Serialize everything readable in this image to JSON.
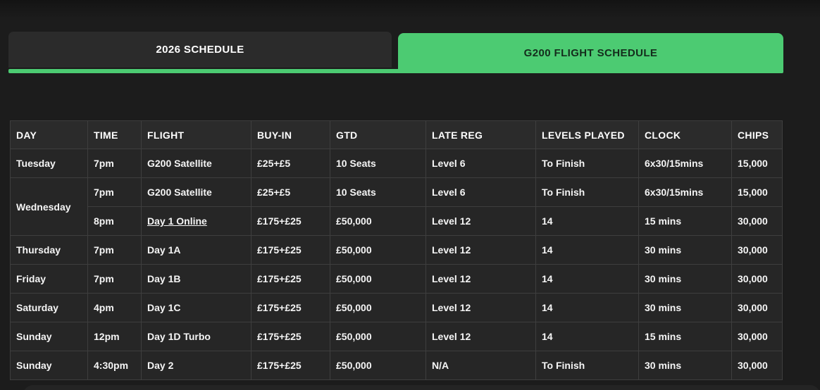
{
  "colors": {
    "accent_green": "#4ccb72",
    "background": "#1c1c1c",
    "cell_background": "#262626",
    "active_tab_text": "#142c1c"
  },
  "tabs": [
    {
      "label": "2026 SCHEDULE",
      "active": false
    },
    {
      "label": "G200 FLIGHT SCHEDULE",
      "active": true
    }
  ],
  "table": {
    "columns": [
      "DAY",
      "TIME",
      "FLIGHT",
      "BUY-IN",
      "GTD",
      "LATE REG",
      "LEVELS PLAYED",
      "CLOCK",
      "CHIPS"
    ],
    "column_keys": [
      "time",
      "flight",
      "buy-in",
      "gtd",
      "late-reg",
      "levels-played",
      "clock",
      "chips"
    ],
    "rows": [
      {
        "day": "Tuesday",
        "rowspan": 1,
        "link_cell": null,
        "cells": [
          "7pm",
          "G200 Satellite",
          "£25+£5",
          "10 Seats",
          "Level 6",
          "To Finish",
          "6x30/15mins",
          "15,000"
        ]
      },
      {
        "day": "Wednesday",
        "rowspan": 2,
        "link_cell": null,
        "cells": [
          "7pm",
          "G200 Satellite",
          "£25+£5",
          "10 Seats",
          "Level 6",
          "To Finish",
          "6x30/15mins",
          "15,000"
        ]
      },
      {
        "day": null,
        "rowspan": 0,
        "link_cell": 1,
        "cells": [
          "8pm",
          "Day 1 Online",
          "£175+£25",
          "£50,000",
          "Level 12",
          "14",
          "15 mins",
          "30,000"
        ]
      },
      {
        "day": "Thursday",
        "rowspan": 1,
        "link_cell": null,
        "cells": [
          "7pm",
          "Day 1A",
          "£175+£25",
          "£50,000",
          "Level 12",
          "14",
          "30 mins",
          "30,000"
        ]
      },
      {
        "day": "Friday",
        "rowspan": 1,
        "link_cell": null,
        "cells": [
          "7pm",
          "Day 1B",
          "£175+£25",
          "£50,000",
          "Level 12",
          "14",
          "30 mins",
          "30,000"
        ]
      },
      {
        "day": "Saturday",
        "rowspan": 1,
        "link_cell": null,
        "cells": [
          "4pm",
          "Day 1C",
          "£175+£25",
          "£50,000",
          "Level 12",
          "14",
          "30 mins",
          "30,000"
        ]
      },
      {
        "day": "Sunday",
        "rowspan": 1,
        "link_cell": null,
        "cells": [
          "12pm",
          "Day 1D Turbo",
          "£175+£25",
          "£50,000",
          "Level 12",
          "14",
          "15 mins",
          "30,000"
        ]
      },
      {
        "day": "Sunday",
        "rowspan": 1,
        "link_cell": null,
        "cells": [
          "4:30pm",
          "Day 2",
          "£175+£25",
          "£50,000",
          "N/A",
          "To Finish",
          "30 mins",
          "30,000"
        ]
      }
    ]
  }
}
